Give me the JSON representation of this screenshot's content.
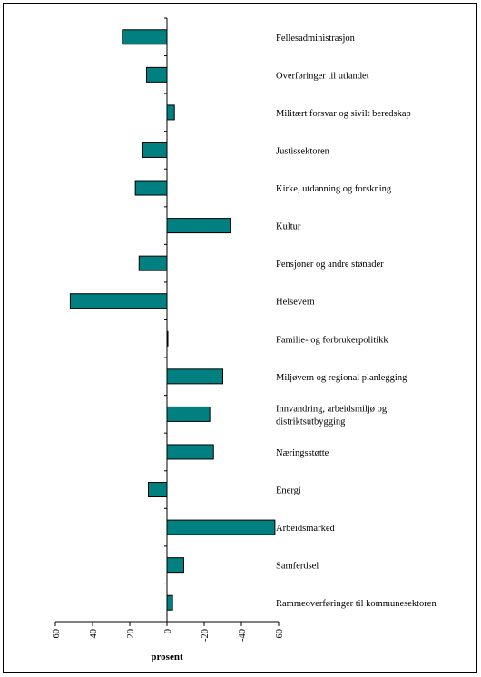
{
  "chart_data": {
    "type": "bar",
    "orientation": "horizontal",
    "xlabel": "prosent",
    "x_axis_reversed": true,
    "xlim": [
      60,
      -60
    ],
    "ticks": [
      "60",
      "40",
      "20",
      "0",
      "-20",
      "-40",
      "-60"
    ],
    "bar_color": "#008080",
    "categories": [
      {
        "label": "Fellesadministrasjon",
        "lines": [
          "Fellesadministrasjon"
        ],
        "value": 24
      },
      {
        "label": "Overføringer til utlandet",
        "lines": [
          "Overføringer til utlandet"
        ],
        "value": 11
      },
      {
        "label": "Militært forsvar og sivilt beredskap",
        "lines": [
          "Militært forsvar og sivilt beredskap"
        ],
        "value": -4
      },
      {
        "label": "Justissektoren",
        "lines": [
          "Justissektoren"
        ],
        "value": 13
      },
      {
        "label": "Kirke, utdanning og forskning",
        "lines": [
          "Kirke, utdanning og forskning"
        ],
        "value": 17
      },
      {
        "label": "Kultur",
        "lines": [
          "Kultur"
        ],
        "value": -34
      },
      {
        "label": "Pensjoner og andre stønader",
        "lines": [
          "Pensjoner og andre stønader"
        ],
        "value": 15
      },
      {
        "label": "Helsevern",
        "lines": [
          "Helsevern"
        ],
        "value": 52
      },
      {
        "label": "Familie- og forbrukerpolitikk",
        "lines": [
          "Familie- og forbrukerpolitikk"
        ],
        "value": -0.5
      },
      {
        "label": "Miljøvern og regional planlegging",
        "lines": [
          "Miljøvern og regional planlegging"
        ],
        "value": -30
      },
      {
        "label": "Innvandring, arbeidsmiljø og distriktsutbygging",
        "lines": [
          "Innvandring, arbeidsmiljø og",
          "distriktsutbygging"
        ],
        "value": -23
      },
      {
        "label": "Næringsstøtte",
        "lines": [
          "Næringsstøtte"
        ],
        "value": -25
      },
      {
        "label": "Energi",
        "lines": [
          "Energi"
        ],
        "value": 10
      },
      {
        "label": "Arbeidsmarked",
        "lines": [
          "Arbeidsmarked"
        ],
        "value": -58
      },
      {
        "label": "Samferdsel",
        "lines": [
          "Samferdsel"
        ],
        "value": -9
      },
      {
        "label": "Rammeoverføringer til kommunesektoren",
        "lines": [
          "Rammeoverføringer til kommunesektoren"
        ],
        "value": -3
      }
    ]
  }
}
